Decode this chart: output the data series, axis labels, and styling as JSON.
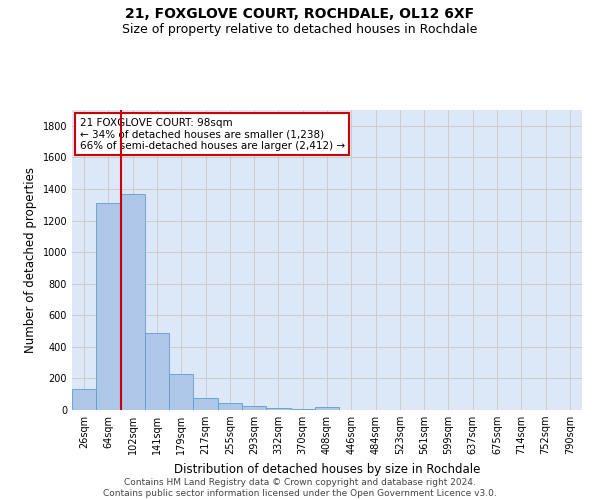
{
  "title": "21, FOXGLOVE COURT, ROCHDALE, OL12 6XF",
  "subtitle": "Size of property relative to detached houses in Rochdale",
  "xlabel": "Distribution of detached houses by size in Rochdale",
  "ylabel": "Number of detached properties",
  "bar_labels": [
    "26sqm",
    "64sqm",
    "102sqm",
    "141sqm",
    "179sqm",
    "217sqm",
    "255sqm",
    "293sqm",
    "332sqm",
    "370sqm",
    "408sqm",
    "446sqm",
    "484sqm",
    "523sqm",
    "561sqm",
    "599sqm",
    "637sqm",
    "675sqm",
    "714sqm",
    "752sqm",
    "790sqm"
  ],
  "bar_values": [
    135,
    1310,
    1370,
    485,
    225,
    75,
    45,
    28,
    15,
    5,
    20,
    0,
    0,
    0,
    0,
    0,
    0,
    0,
    0,
    0,
    0
  ],
  "bar_color": "#aec6e8",
  "bar_edge_color": "#5a9fd4",
  "vline_color": "#cc0000",
  "annotation_text": "21 FOXGLOVE COURT: 98sqm\n← 34% of detached houses are smaller (1,238)\n66% of semi-detached houses are larger (2,412) →",
  "annotation_box_color": "#cc0000",
  "ylim": [
    0,
    1900
  ],
  "yticks": [
    0,
    200,
    400,
    600,
    800,
    1000,
    1200,
    1400,
    1600,
    1800
  ],
  "grid_color": "#cccccc",
  "background_color": "#dce8f8",
  "footer_text": "Contains HM Land Registry data © Crown copyright and database right 2024.\nContains public sector information licensed under the Open Government Licence v3.0.",
  "title_fontsize": 10,
  "subtitle_fontsize": 9,
  "axis_label_fontsize": 8.5,
  "tick_fontsize": 7,
  "footer_fontsize": 6.5,
  "annotation_fontsize": 7.5
}
